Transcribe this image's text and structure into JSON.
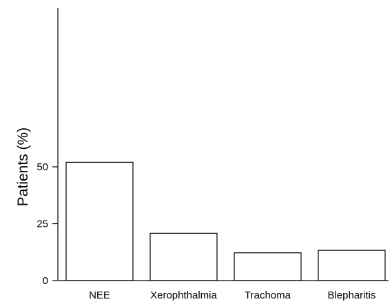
{
  "chart_data": {
    "type": "bar",
    "categories": [
      "NEE",
      "Xerophthalmia",
      "Trachoma",
      "Blepharitis"
    ],
    "values": [
      52,
      20.8,
      12.2,
      13.3
    ],
    "title": "",
    "xlabel": "",
    "ylabel": "Patients (%)",
    "ylim": [
      0,
      60
    ],
    "yticks": [
      0,
      25,
      50
    ],
    "ytick_labels": [
      "0",
      "25",
      "50"
    ],
    "grid": false,
    "legend": "none",
    "colors": {
      "bar_fill": "#ffffff",
      "bar_edge": "#000000"
    }
  }
}
